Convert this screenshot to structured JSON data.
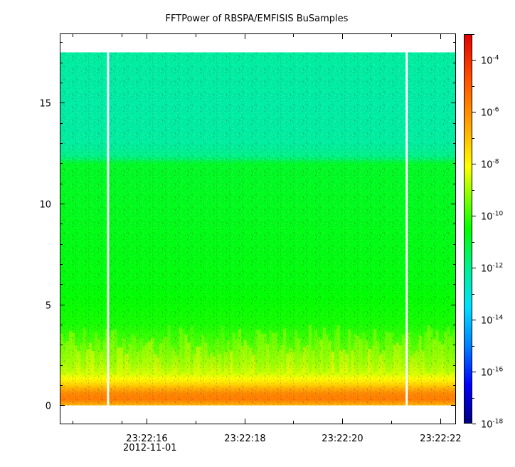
{
  "chart_data": {
    "type": "heatmap",
    "title": "FFTPower of RBSPA/EMFISIS  BuSamples",
    "xlabel": "",
    "ylabel": "",
    "x_axis": {
      "type": "time",
      "date_label": "2012-11-01",
      "major_ticks": [
        {
          "label": "23:22:16",
          "t": 16
        },
        {
          "label": "23:22:18",
          "t": 18
        },
        {
          "label": "23:22:20",
          "t": 20
        },
        {
          "label": "23:22:22",
          "t": 22
        }
      ],
      "minor_ticks": [
        14.5,
        15.5,
        17,
        19,
        21
      ],
      "xlim_seconds": [
        14.25,
        22.3
      ]
    },
    "y_axis": {
      "ticks": [
        0,
        5,
        10,
        15
      ],
      "ylim": [
        -0.9,
        18.4
      ]
    },
    "data_extent": {
      "t_range": [
        14.25,
        22.3
      ],
      "y_range": [
        0,
        17.5
      ]
    },
    "data_gaps_seconds": [
      15.22,
      21.31
    ],
    "colorbar": {
      "scale": "log",
      "range": [
        1e-18,
        0.001
      ],
      "tick_exponents": [
        -4,
        -6,
        -8,
        -10,
        -12,
        -14,
        -16,
        -18
      ],
      "tick_base": "10",
      "colormap": [
        "#00007f",
        "#0000ff",
        "#0080ff",
        "#00e0ff",
        "#00f090",
        "#00ff00",
        "#80ff00",
        "#ffff00",
        "#ffaa00",
        "#ff5500",
        "#e00000"
      ],
      "colormap_stops": [
        0.0,
        0.1,
        0.2,
        0.3,
        0.4,
        0.5,
        0.58,
        0.66,
        0.76,
        0.88,
        1.0
      ]
    },
    "power_profile": [
      {
        "y": 0.0,
        "log_power": -6.8
      },
      {
        "y": 0.3,
        "log_power": -5.6
      },
      {
        "y": 0.6,
        "log_power": -5.9
      },
      {
        "y": 0.9,
        "log_power": -6.9
      },
      {
        "y": 1.2,
        "log_power": -7.8
      },
      {
        "y": 1.6,
        "log_power": -8.6
      },
      {
        "y": 2.2,
        "log_power": -9.3
      },
      {
        "y": 3.0,
        "log_power": -9.8
      },
      {
        "y": 4.0,
        "log_power": -10.3
      },
      {
        "y": 6.0,
        "log_power": -10.6
      },
      {
        "y": 8.0,
        "log_power": -10.7
      },
      {
        "y": 10.0,
        "log_power": -10.8
      },
      {
        "y": 12.0,
        "log_power": -10.9
      },
      {
        "y": 12.3,
        "log_power": -11.9
      },
      {
        "y": 13.0,
        "log_power": -12.2
      },
      {
        "y": 15.0,
        "log_power": -12.3
      },
      {
        "y": 17.5,
        "log_power": -12.2
      }
    ]
  }
}
